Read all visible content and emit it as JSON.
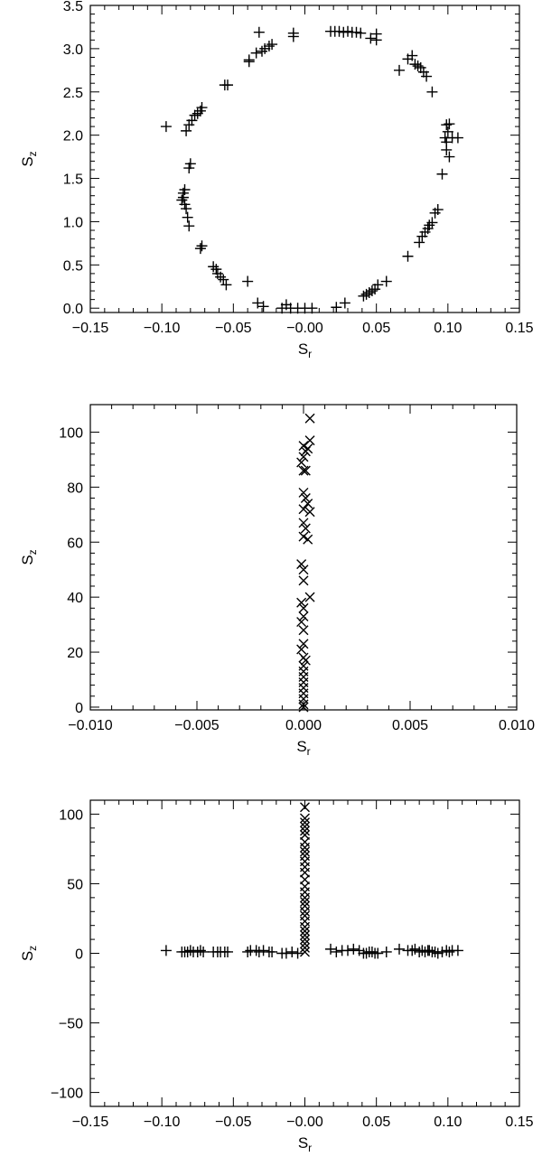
{
  "chart_data": [
    {
      "type": "scatter",
      "marker": "plus",
      "xlabel": "S",
      "xlabel_sub": "r",
      "ylabel": "S",
      "ylabel_sub": "z",
      "xlim": [
        -0.15,
        0.15
      ],
      "ylim": [
        -0.05,
        3.5
      ],
      "xticks": [
        -0.15,
        -0.1,
        -0.05,
        0.0,
        0.05,
        0.1,
        0.15
      ],
      "xtick_labels": [
        "−0.15",
        "−0.10",
        "−0.05",
        "−0.00",
        "0.05",
        "0.10",
        "0.15"
      ],
      "yticks": [
        0.0,
        0.5,
        1.0,
        1.5,
        2.0,
        2.5,
        3.0,
        3.5
      ],
      "ytick_labels": [
        "0.0",
        "0.5",
        "1.0",
        "1.5",
        "2.0",
        "2.5",
        "3.0",
        "3.5"
      ],
      "points": [
        [
          -0.097,
          2.1
        ],
        [
          -0.083,
          2.05
        ],
        [
          -0.081,
          2.12
        ],
        [
          -0.079,
          2.17
        ],
        [
          -0.077,
          2.23
        ],
        [
          -0.075,
          2.25
        ],
        [
          -0.073,
          2.28
        ],
        [
          -0.072,
          2.32
        ],
        [
          -0.081,
          1.62
        ],
        [
          -0.08,
          1.67
        ],
        [
          -0.086,
          1.25
        ],
        [
          -0.085,
          1.28
        ],
        [
          -0.085,
          1.33
        ],
        [
          -0.084,
          1.37
        ],
        [
          -0.084,
          1.2
        ],
        [
          -0.083,
          1.15
        ],
        [
          -0.082,
          1.05
        ],
        [
          -0.081,
          0.95
        ],
        [
          -0.072,
          0.72
        ],
        [
          -0.073,
          0.69
        ],
        [
          -0.064,
          0.48
        ],
        [
          -0.062,
          0.45
        ],
        [
          -0.061,
          0.4
        ],
        [
          -0.059,
          0.36
        ],
        [
          -0.057,
          0.33
        ],
        [
          -0.055,
          0.27
        ],
        [
          -0.04,
          0.31
        ],
        [
          -0.033,
          0.06
        ],
        [
          -0.029,
          0.02
        ],
        [
          -0.016,
          0.0
        ],
        [
          -0.013,
          0.04
        ],
        [
          -0.01,
          0.0
        ],
        [
          -0.005,
          0.0
        ],
        [
          0.0,
          0.0
        ],
        [
          0.005,
          0.0
        ],
        [
          0.022,
          0.01
        ],
        [
          0.028,
          0.06
        ],
        [
          0.041,
          0.14
        ],
        [
          0.043,
          0.16
        ],
        [
          0.045,
          0.18
        ],
        [
          0.047,
          0.2
        ],
        [
          0.049,
          0.22
        ],
        [
          0.051,
          0.27
        ],
        [
          0.057,
          0.31
        ],
        [
          0.072,
          0.6
        ],
        [
          0.08,
          0.76
        ],
        [
          0.082,
          0.83
        ],
        [
          0.084,
          0.88
        ],
        [
          0.086,
          0.92
        ],
        [
          0.087,
          0.96
        ],
        [
          0.089,
          0.99
        ],
        [
          0.091,
          1.1
        ],
        [
          0.093,
          1.14
        ],
        [
          0.096,
          1.55
        ],
        [
          0.101,
          1.75
        ],
        [
          0.099,
          1.83
        ],
        [
          0.099,
          1.92
        ],
        [
          0.098,
          1.97
        ],
        [
          0.103,
          1.97
        ],
        [
          0.107,
          1.97
        ],
        [
          0.1,
          2.04
        ],
        [
          0.099,
          2.12
        ],
        [
          0.101,
          2.13
        ],
        [
          0.089,
          2.5
        ],
        [
          0.066,
          2.75
        ],
        [
          0.072,
          2.88
        ],
        [
          0.075,
          2.92
        ],
        [
          0.077,
          2.82
        ],
        [
          0.079,
          2.8
        ],
        [
          0.081,
          2.78
        ],
        [
          0.083,
          2.73
        ],
        [
          0.085,
          2.68
        ],
        [
          0.046,
          3.12
        ],
        [
          0.05,
          3.1
        ],
        [
          0.05,
          3.17
        ],
        [
          0.018,
          3.2
        ],
        [
          0.021,
          3.2
        ],
        [
          0.024,
          3.2
        ],
        [
          0.027,
          3.19
        ],
        [
          0.03,
          3.2
        ],
        [
          0.033,
          3.19
        ],
        [
          0.036,
          3.19
        ],
        [
          0.039,
          3.18
        ],
        [
          -0.008,
          3.14
        ],
        [
          -0.008,
          3.18
        ],
        [
          -0.032,
          3.19
        ],
        [
          -0.034,
          2.95
        ],
        [
          -0.03,
          2.97
        ],
        [
          -0.028,
          3.0
        ],
        [
          -0.025,
          3.03
        ],
        [
          -0.023,
          3.05
        ],
        [
          -0.039,
          2.87
        ],
        [
          -0.039,
          2.85
        ],
        [
          -0.054,
          2.58
        ],
        [
          -0.056,
          2.58
        ]
      ]
    },
    {
      "type": "scatter",
      "marker": "cross",
      "xlabel": "S",
      "xlabel_sub": "r",
      "ylabel": "S",
      "ylabel_sub": "z",
      "xlim": [
        -0.01,
        0.01
      ],
      "ylim": [
        -1,
        110
      ],
      "xticks": [
        -0.01,
        -0.005,
        0.0,
        0.005,
        0.01
      ],
      "xtick_labels": [
        "−0.010",
        "−0.005",
        "0.000",
        "0.005",
        "0.010"
      ],
      "yticks": [
        0,
        20,
        40,
        60,
        80,
        100
      ],
      "ytick_labels": [
        "0",
        "20",
        "40",
        "60",
        "80",
        "100"
      ],
      "points": [
        [
          0.0003,
          105
        ],
        [
          0.0003,
          97
        ],
        [
          0.0002,
          94
        ],
        [
          0.0,
          95
        ],
        [
          0.0001,
          93
        ],
        [
          0.0,
          91
        ],
        [
          -0.0001,
          89
        ],
        [
          0.0,
          86
        ],
        [
          0.0001,
          86
        ],
        [
          0.0,
          78
        ],
        [
          0.0001,
          76
        ],
        [
          0.0002,
          74
        ],
        [
          0.0,
          72
        ],
        [
          0.0003,
          71
        ],
        [
          0.0,
          67
        ],
        [
          0.0001,
          65
        ],
        [
          0.0,
          62
        ],
        [
          0.0002,
          61
        ],
        [
          -0.0001,
          52
        ],
        [
          0.0,
          50
        ],
        [
          0.0,
          46
        ],
        [
          0.0003,
          40
        ],
        [
          -0.0001,
          38
        ],
        [
          0.0,
          36
        ],
        [
          0.0,
          33
        ],
        [
          -0.0001,
          31
        ],
        [
          0.0,
          28
        ],
        [
          0.0,
          23
        ],
        [
          -0.0001,
          21
        ],
        [
          0.0,
          18
        ],
        [
          0.0001,
          17
        ],
        [
          0.0,
          15
        ],
        [
          0.0,
          13
        ],
        [
          0.0,
          11
        ],
        [
          0.0,
          9
        ],
        [
          0.0,
          7
        ],
        [
          0.0,
          5
        ],
        [
          0.0,
          3
        ],
        [
          0.0,
          1
        ],
        [
          0.0,
          0
        ]
      ]
    },
    {
      "type": "scatter",
      "marker": "mixed",
      "xlabel": "S",
      "xlabel_sub": "r",
      "ylabel": "S",
      "ylabel_sub": "z",
      "xlim": [
        -0.15,
        0.15
      ],
      "ylim": [
        -110,
        110
      ],
      "xticks": [
        -0.15,
        -0.1,
        -0.05,
        0.0,
        0.05,
        0.1,
        0.15
      ],
      "xtick_labels": [
        "−0.15",
        "−0.10",
        "−0.05",
        "−0.00",
        "0.05",
        "0.10",
        "0.15"
      ],
      "yticks": [
        -100,
        -50,
        0,
        50,
        100
      ],
      "ytick_labels": [
        "−100",
        "−50",
        "0",
        "50",
        "100"
      ],
      "points_plus": [
        [
          -0.097,
          2
        ],
        [
          -0.086,
          1
        ],
        [
          -0.084,
          1
        ],
        [
          -0.082,
          1
        ],
        [
          -0.08,
          2
        ],
        [
          -0.078,
          1
        ],
        [
          -0.075,
          1
        ],
        [
          -0.073,
          2
        ],
        [
          -0.071,
          1
        ],
        [
          -0.064,
          1
        ],
        [
          -0.061,
          1
        ],
        [
          -0.059,
          1
        ],
        [
          -0.056,
          1
        ],
        [
          -0.054,
          1
        ],
        [
          -0.04,
          1
        ],
        [
          -0.038,
          2
        ],
        [
          -0.034,
          2
        ],
        [
          -0.032,
          1
        ],
        [
          -0.029,
          2
        ],
        [
          -0.025,
          1
        ],
        [
          -0.023,
          1
        ],
        [
          -0.016,
          0
        ],
        [
          -0.013,
          0
        ],
        [
          -0.009,
          1
        ],
        [
          -0.005,
          0
        ],
        [
          0.018,
          3
        ],
        [
          0.022,
          1
        ],
        [
          0.026,
          2
        ],
        [
          0.03,
          2
        ],
        [
          0.034,
          3
        ],
        [
          0.038,
          2
        ],
        [
          0.041,
          0
        ],
        [
          0.043,
          0
        ],
        [
          0.045,
          1
        ],
        [
          0.047,
          1
        ],
        [
          0.049,
          0
        ],
        [
          0.051,
          0
        ],
        [
          0.057,
          1
        ],
        [
          0.066,
          3
        ],
        [
          0.072,
          2
        ],
        [
          0.075,
          2
        ],
        [
          0.077,
          3
        ],
        [
          0.08,
          1
        ],
        [
          0.082,
          2
        ],
        [
          0.084,
          1
        ],
        [
          0.086,
          2
        ],
        [
          0.087,
          2
        ],
        [
          0.089,
          1
        ],
        [
          0.091,
          1
        ],
        [
          0.093,
          0
        ],
        [
          0.096,
          1
        ],
        [
          0.099,
          2
        ],
        [
          0.101,
          1
        ],
        [
          0.103,
          2
        ],
        [
          0.107,
          2
        ]
      ],
      "points_cross": [
        [
          0.0,
          105
        ],
        [
          0.0,
          97
        ],
        [
          0.0,
          94
        ],
        [
          0.0,
          91
        ],
        [
          0.0,
          88
        ],
        [
          0.0,
          85
        ],
        [
          0.0,
          80
        ],
        [
          0.0,
          76
        ],
        [
          0.0,
          73
        ],
        [
          0.0,
          70
        ],
        [
          0.0,
          66
        ],
        [
          0.0,
          62
        ],
        [
          0.0,
          58
        ],
        [
          0.0,
          53
        ],
        [
          0.0,
          48
        ],
        [
          0.0,
          44
        ],
        [
          0.0,
          40
        ],
        [
          0.0,
          37
        ],
        [
          0.0,
          34
        ],
        [
          0.0,
          30
        ],
        [
          0.0,
          27
        ],
        [
          0.0,
          23
        ],
        [
          0.0,
          19
        ],
        [
          0.0,
          16
        ],
        [
          0.0,
          13
        ],
        [
          0.0,
          10
        ],
        [
          0.0,
          7
        ],
        [
          0.0,
          4
        ],
        [
          0.0,
          1
        ]
      ]
    }
  ]
}
